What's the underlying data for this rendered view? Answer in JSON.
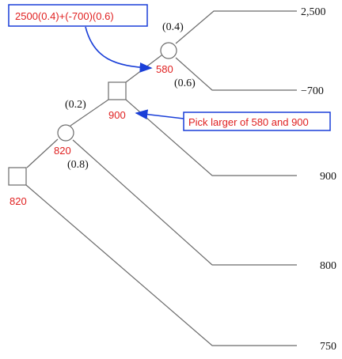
{
  "probabilities": {
    "top_up": "(0.4)",
    "top_down": "(0.6)",
    "mid_up": "(0.2)",
    "mid_down": "(0.8)"
  },
  "expected_values": {
    "top_chance": "580",
    "mid_decision": "900",
    "mid_chance": "820",
    "root_decision": "820"
  },
  "payoffs": {
    "p1": "2,500",
    "p2": "−700",
    "p3": "900",
    "p4": "800",
    "p5": "750"
  },
  "annotations": {
    "formula": "2500(0.4)+(-700)(0.6)",
    "pick": "Pick larger of 580 and 900"
  },
  "colors": {
    "annotation_border": "#1a3fd8",
    "annotation_text": "#e02020",
    "tree_lines": "#6b6b6b"
  }
}
